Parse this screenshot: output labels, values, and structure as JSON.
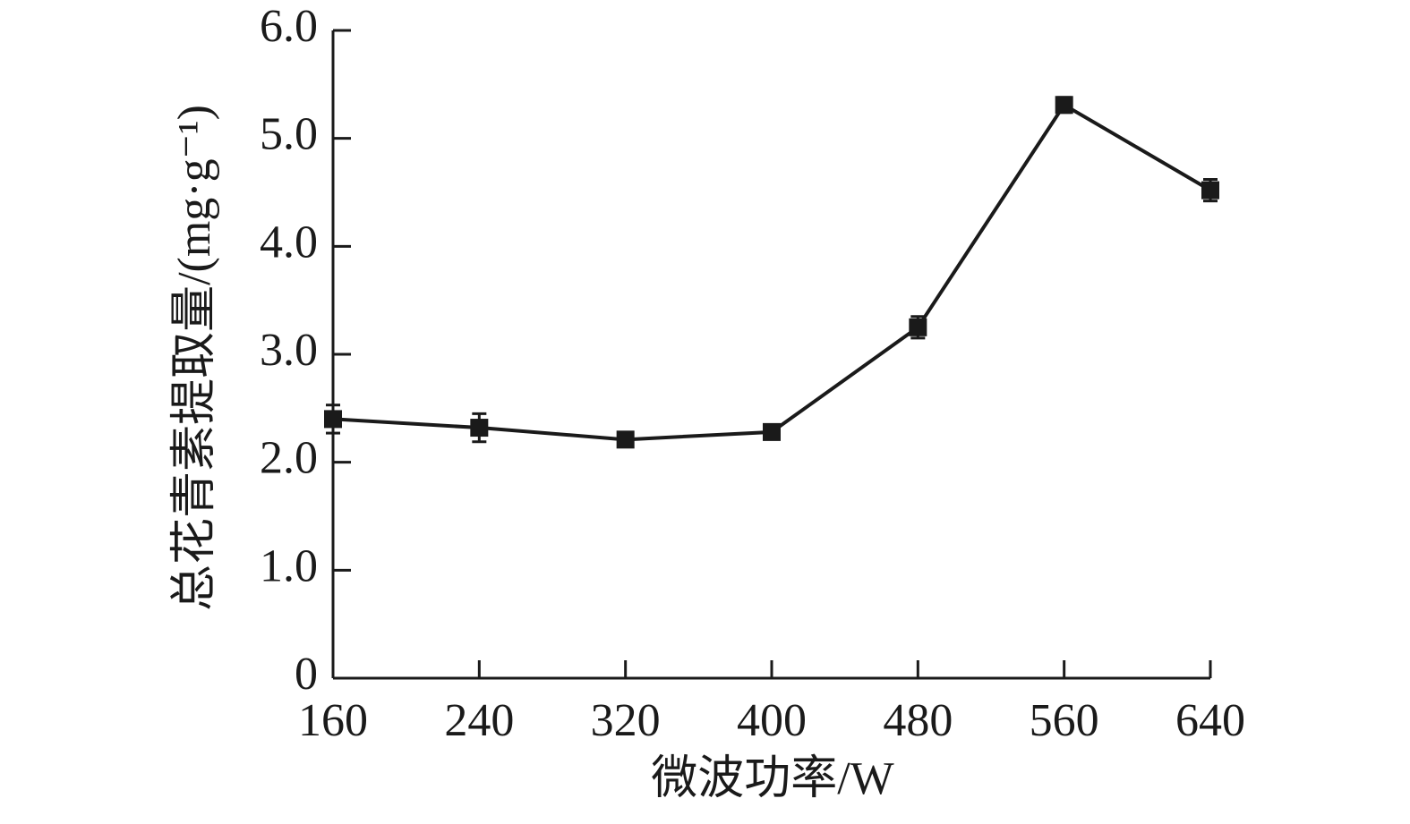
{
  "chart_data": {
    "type": "line",
    "x": [
      160,
      240,
      320,
      400,
      480,
      560,
      640
    ],
    "series": [
      {
        "values": [
          2.4,
          2.32,
          2.21,
          2.28,
          3.25,
          5.31,
          4.52
        ],
        "errors": [
          0.13,
          0.13,
          0.06,
          0.03,
          0.1,
          0.07,
          0.1
        ],
        "color": "#1a1a1a"
      }
    ],
    "xlim": [
      160,
      640
    ],
    "xticks": [
      160,
      240,
      320,
      400,
      480,
      560,
      640
    ],
    "ylim": [
      0,
      6
    ],
    "yticks": [
      0,
      {
        "value": 1,
        "label": "1.0"
      },
      {
        "value": 2,
        "label": "2.0"
      },
      {
        "value": 3,
        "label": "3.0"
      },
      {
        "value": 4,
        "label": "4.0"
      },
      {
        "value": 5,
        "label": "5.0"
      },
      {
        "value": 6,
        "label": "6.0"
      }
    ],
    "xlabel": "微波功率/W",
    "ylabel": "总花青素提取量/(mg·g⁻¹)"
  }
}
